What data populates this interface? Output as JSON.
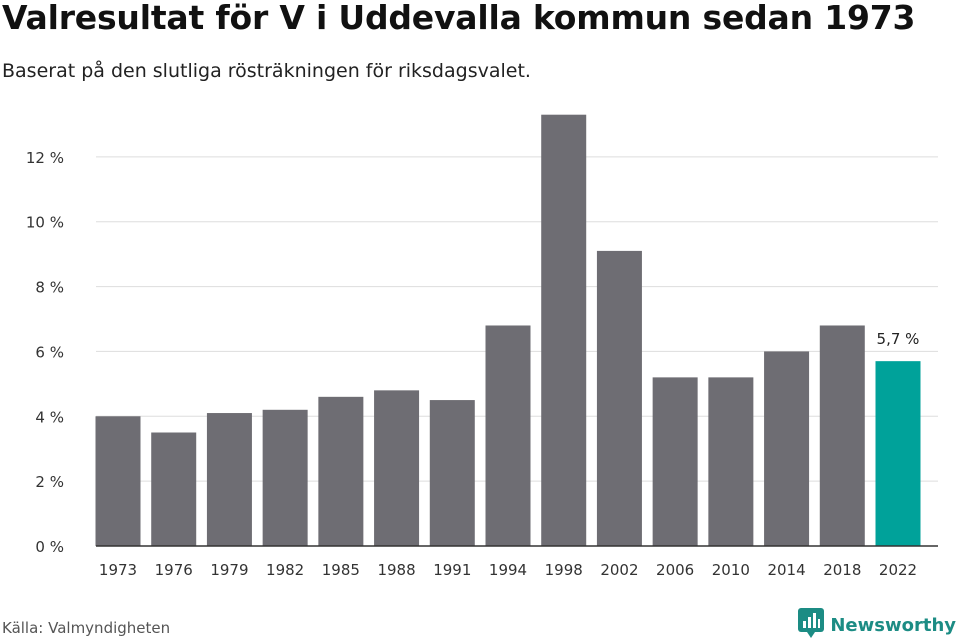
{
  "header": {
    "title": "Valresultat för V i Uddevalla kommun sedan 1973",
    "subtitle": "Baserat på den slutliga rösträkningen för riksdagsvalet."
  },
  "footer": {
    "source": "Källa: Valmyndigheten",
    "brand": "Newsworthy"
  },
  "colors": {
    "bar": "#6e6d73",
    "highlight": "#00a29a",
    "grid": "#dddddd",
    "axis": "#333333",
    "brand": "#1c8c84"
  },
  "icons": {
    "brand_logo": "newsworthy-logo-icon"
  },
  "chart_data": {
    "type": "bar",
    "title": "Valresultat för V i Uddevalla kommun sedan 1973",
    "subtitle": "Baserat på den slutliga rösträkningen för riksdagsvalet.",
    "categories": [
      "1973",
      "1976",
      "1979",
      "1982",
      "1985",
      "1988",
      "1991",
      "1994",
      "1998",
      "2002",
      "2006",
      "2010",
      "2014",
      "2018",
      "2022"
    ],
    "values": [
      4.0,
      3.5,
      4.1,
      4.2,
      4.6,
      4.8,
      4.5,
      6.8,
      13.3,
      9.1,
      5.2,
      5.2,
      6.0,
      6.8,
      5.7
    ],
    "ylim": [
      0,
      14
    ],
    "yticks": [
      0,
      2,
      4,
      6,
      8,
      10,
      12
    ],
    "ytick_labels": [
      "0 %",
      "2 %",
      "4 %",
      "6 %",
      "8 %",
      "10 %",
      "12 %"
    ],
    "highlight_index": 14,
    "annotations": [
      {
        "category": "2022",
        "text": "5,7 %"
      }
    ],
    "grid": true,
    "legend": "none"
  }
}
